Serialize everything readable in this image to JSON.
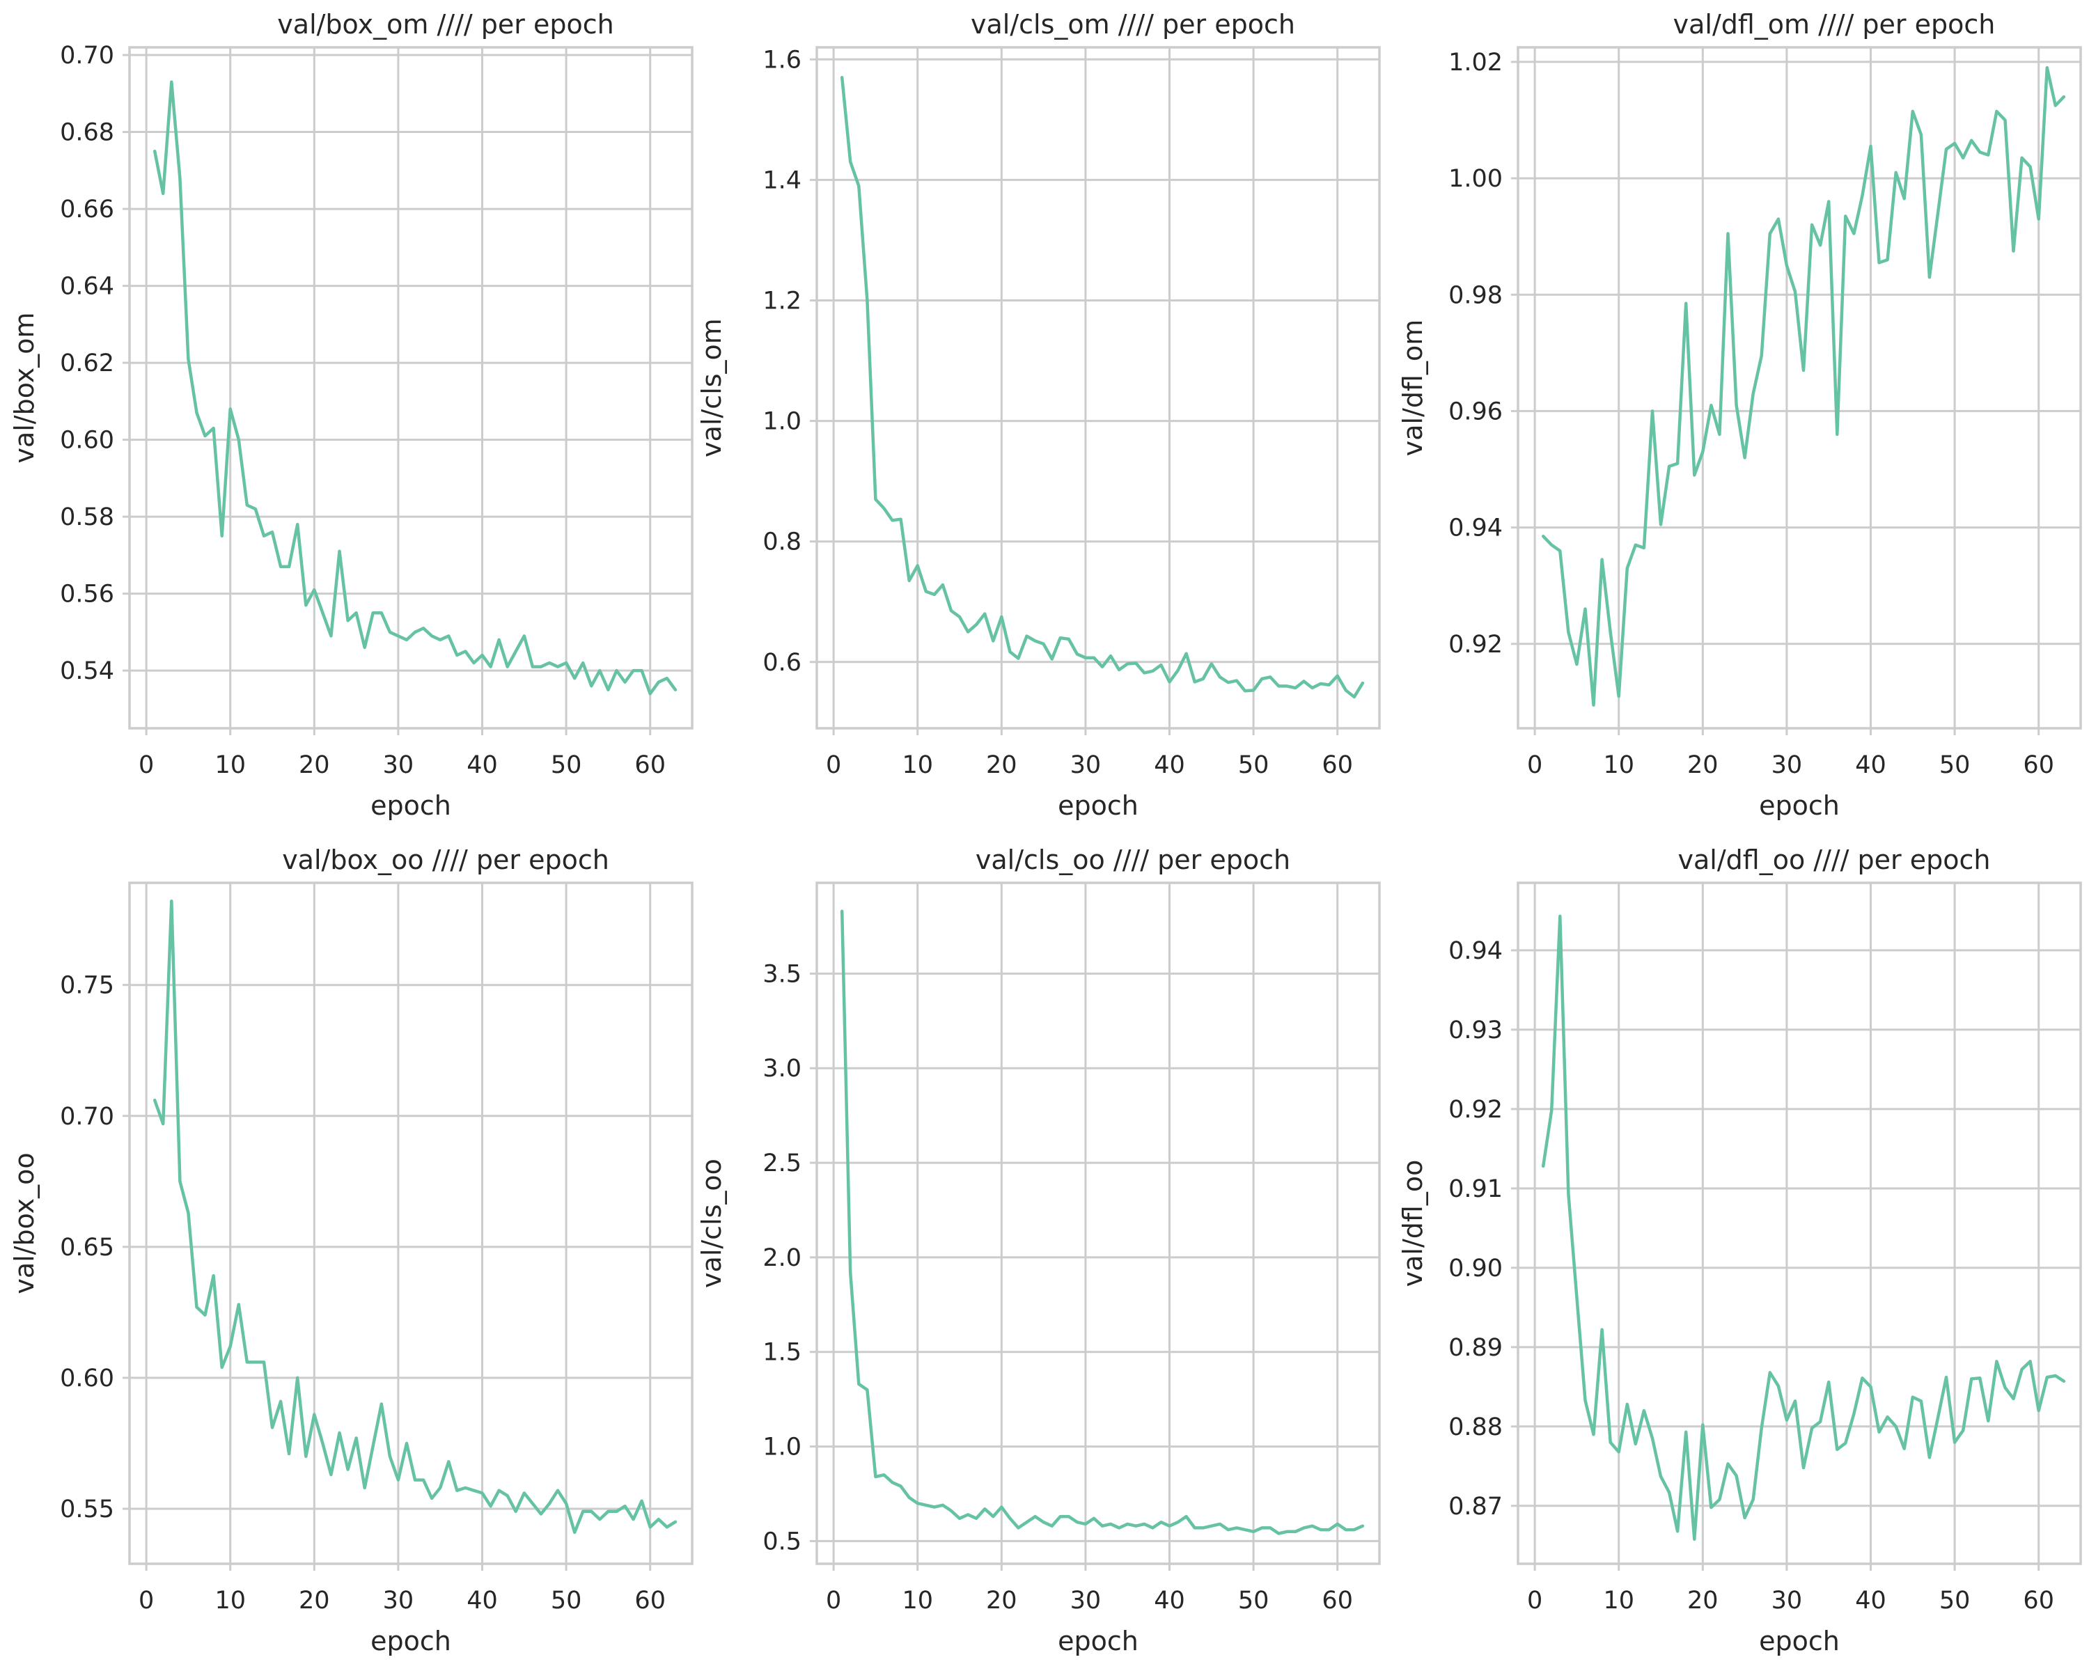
{
  "style": {
    "line_color": "#66c2a5",
    "grid_color": "#cccccc",
    "frame_color": "#cccccc",
    "text_color": "#262626"
  },
  "chart_data": [
    {
      "type": "line",
      "title": "val/box_om //// per epoch",
      "xlabel": "epoch",
      "ylabel": "val/box_om",
      "xlim": [
        -2,
        65
      ],
      "ylim": [
        0.525,
        0.702
      ],
      "xticks": [
        0,
        10,
        20,
        30,
        40,
        50,
        60
      ],
      "xtick_labels": [
        "0",
        "10",
        "20",
        "30",
        "40",
        "50",
        "60"
      ],
      "yticks": [
        0.54,
        0.56,
        0.58,
        0.6,
        0.62,
        0.64,
        0.66,
        0.68,
        0.7
      ],
      "ytick_labels": [
        "0.54",
        "0.56",
        "0.58",
        "0.60",
        "0.62",
        "0.64",
        "0.66",
        "0.68",
        "0.70"
      ],
      "grid": true,
      "series": [
        {
          "x": [
            1,
            2,
            3,
            4,
            5,
            6,
            7,
            8,
            9,
            10,
            11,
            12,
            13,
            14,
            15,
            16,
            17,
            18,
            19,
            20,
            21,
            22,
            23,
            24,
            25,
            26,
            27,
            28,
            29,
            30,
            31,
            32,
            33,
            34,
            35,
            36,
            37,
            38,
            39,
            40,
            41,
            42,
            43,
            44,
            45,
            46,
            47,
            48,
            49,
            50,
            51,
            52,
            53,
            54,
            55,
            56,
            57,
            58,
            59,
            60,
            61,
            62,
            63
          ],
          "y": [
            0.675,
            0.664,
            0.693,
            0.668,
            0.621,
            0.607,
            0.601,
            0.603,
            0.575,
            0.608,
            0.6,
            0.583,
            0.582,
            0.575,
            0.576,
            0.567,
            0.567,
            0.578,
            0.557,
            0.561,
            0.555,
            0.549,
            0.571,
            0.553,
            0.555,
            0.546,
            0.555,
            0.555,
            0.55,
            0.549,
            0.548,
            0.55,
            0.551,
            0.549,
            0.548,
            0.549,
            0.544,
            0.545,
            0.542,
            0.544,
            0.541,
            0.548,
            0.541,
            0.545,
            0.549,
            0.541,
            0.541,
            0.542,
            0.541,
            0.542,
            0.538,
            0.542,
            0.536,
            0.54,
            0.535,
            0.54,
            0.537,
            0.54,
            0.54,
            0.534,
            0.537,
            0.538,
            0.535
          ]
        }
      ]
    },
    {
      "type": "line",
      "title": "val/cls_om //// per epoch",
      "xlabel": "epoch",
      "ylabel": "val/cls_om",
      "xlim": [
        -2,
        65
      ],
      "ylim": [
        0.49,
        1.62
      ],
      "xticks": [
        0,
        10,
        20,
        30,
        40,
        50,
        60
      ],
      "xtick_labels": [
        "0",
        "10",
        "20",
        "30",
        "40",
        "50",
        "60"
      ],
      "yticks": [
        0.6,
        0.8,
        1.0,
        1.2,
        1.4,
        1.6
      ],
      "ytick_labels": [
        "0.6",
        "0.8",
        "1.0",
        "1.2",
        "1.4",
        "1.6"
      ],
      "grid": true,
      "series": [
        {
          "x": [
            1,
            2,
            3,
            4,
            5,
            6,
            7,
            8,
            9,
            10,
            11,
            12,
            13,
            14,
            15,
            16,
            17,
            18,
            19,
            20,
            21,
            22,
            23,
            24,
            25,
            26,
            27,
            28,
            29,
            30,
            31,
            32,
            33,
            34,
            35,
            36,
            37,
            38,
            39,
            40,
            41,
            42,
            43,
            44,
            45,
            46,
            47,
            48,
            49,
            50,
            51,
            52,
            53,
            54,
            55,
            56,
            57,
            58,
            59,
            60,
            61,
            62,
            63
          ],
          "y": [
            1.57,
            1.43,
            1.39,
            1.2,
            0.87,
            0.855,
            0.835,
            0.837,
            0.735,
            0.76,
            0.717,
            0.712,
            0.728,
            0.685,
            0.675,
            0.65,
            0.662,
            0.68,
            0.635,
            0.675,
            0.617,
            0.606,
            0.643,
            0.635,
            0.63,
            0.605,
            0.64,
            0.638,
            0.613,
            0.607,
            0.607,
            0.592,
            0.61,
            0.587,
            0.597,
            0.598,
            0.582,
            0.585,
            0.595,
            0.567,
            0.586,
            0.614,
            0.567,
            0.572,
            0.597,
            0.575,
            0.566,
            0.569,
            0.552,
            0.553,
            0.572,
            0.575,
            0.56,
            0.56,
            0.557,
            0.568,
            0.557,
            0.564,
            0.562,
            0.577,
            0.553,
            0.542,
            0.565
          ]
        }
      ]
    },
    {
      "type": "line",
      "title": "val/dfl_om //// per epoch",
      "xlabel": "epoch",
      "ylabel": "val/dfl_om",
      "xlim": [
        -2,
        65
      ],
      "ylim": [
        0.9055,
        1.0225
      ],
      "xticks": [
        0,
        10,
        20,
        30,
        40,
        50,
        60
      ],
      "xtick_labels": [
        "0",
        "10",
        "20",
        "30",
        "40",
        "50",
        "60"
      ],
      "yticks": [
        0.92,
        0.94,
        0.96,
        0.98,
        1.0,
        1.02
      ],
      "ytick_labels": [
        "0.92",
        "0.94",
        "0.96",
        "0.98",
        "1.00",
        "1.02"
      ],
      "grid": true,
      "series": [
        {
          "x": [
            1,
            2,
            3,
            4,
            5,
            6,
            7,
            8,
            9,
            10,
            11,
            12,
            13,
            14,
            15,
            16,
            17,
            18,
            19,
            20,
            21,
            22,
            23,
            24,
            25,
            26,
            27,
            28,
            29,
            30,
            31,
            32,
            33,
            34,
            35,
            36,
            37,
            38,
            39,
            40,
            41,
            42,
            43,
            44,
            45,
            46,
            47,
            48,
            49,
            50,
            51,
            52,
            53,
            54,
            55,
            56,
            57,
            58,
            59,
            60,
            61,
            62,
            63
          ],
          "y": [
            0.9385,
            0.937,
            0.936,
            0.922,
            0.9165,
            0.926,
            0.9095,
            0.9345,
            0.922,
            0.911,
            0.933,
            0.937,
            0.9365,
            0.96,
            0.9405,
            0.9505,
            0.951,
            0.9785,
            0.949,
            0.953,
            0.961,
            0.956,
            0.9905,
            0.961,
            0.952,
            0.963,
            0.9695,
            0.9905,
            0.993,
            0.985,
            0.9805,
            0.967,
            0.992,
            0.9885,
            0.996,
            0.956,
            0.9935,
            0.9905,
            0.997,
            1.0055,
            0.9855,
            0.986,
            1.001,
            0.9965,
            1.0115,
            1.0075,
            0.983,
            0.994,
            1.005,
            1.006,
            1.0035,
            1.0065,
            1.0045,
            1.004,
            1.0115,
            1.01,
            0.9875,
            1.0035,
            1.002,
            0.993,
            1.019,
            1.0125,
            1.014
          ]
        }
      ]
    },
    {
      "type": "line",
      "title": "val/box_oo //// per epoch",
      "xlabel": "epoch",
      "ylabel": "val/box_oo",
      "xlim": [
        -2,
        65
      ],
      "ylim": [
        0.529,
        0.789
      ],
      "xticks": [
        0,
        10,
        20,
        30,
        40,
        50,
        60
      ],
      "xtick_labels": [
        "0",
        "10",
        "20",
        "30",
        "40",
        "50",
        "60"
      ],
      "yticks": [
        0.55,
        0.6,
        0.65,
        0.7,
        0.75
      ],
      "ytick_labels": [
        "0.55",
        "0.60",
        "0.65",
        "0.70",
        "0.75"
      ],
      "grid": true,
      "series": [
        {
          "x": [
            1,
            2,
            3,
            4,
            5,
            6,
            7,
            8,
            9,
            10,
            11,
            12,
            13,
            14,
            15,
            16,
            17,
            18,
            19,
            20,
            21,
            22,
            23,
            24,
            25,
            26,
            27,
            28,
            29,
            30,
            31,
            32,
            33,
            34,
            35,
            36,
            37,
            38,
            39,
            40,
            41,
            42,
            43,
            44,
            45,
            46,
            47,
            48,
            49,
            50,
            51,
            52,
            53,
            54,
            55,
            56,
            57,
            58,
            59,
            60,
            61,
            62,
            63
          ],
          "y": [
            0.706,
            0.697,
            0.782,
            0.675,
            0.663,
            0.627,
            0.624,
            0.639,
            0.604,
            0.612,
            0.628,
            0.606,
            0.606,
            0.606,
            0.581,
            0.591,
            0.571,
            0.6,
            0.57,
            0.586,
            0.575,
            0.563,
            0.579,
            0.565,
            0.577,
            0.558,
            0.574,
            0.59,
            0.57,
            0.561,
            0.575,
            0.561,
            0.561,
            0.554,
            0.558,
            0.568,
            0.557,
            0.558,
            0.557,
            0.556,
            0.551,
            0.557,
            0.555,
            0.549,
            0.556,
            0.552,
            0.548,
            0.552,
            0.557,
            0.552,
            0.541,
            0.549,
            0.549,
            0.546,
            0.549,
            0.549,
            0.551,
            0.546,
            0.553,
            0.543,
            0.546,
            0.543,
            0.545
          ]
        }
      ]
    },
    {
      "type": "line",
      "title": "val/cls_oo //// per epoch",
      "xlabel": "epoch",
      "ylabel": "val/cls_oo",
      "xlim": [
        -2,
        65
      ],
      "ylim": [
        0.38,
        3.98
      ],
      "xticks": [
        0,
        10,
        20,
        30,
        40,
        50,
        60
      ],
      "xtick_labels": [
        "0",
        "10",
        "20",
        "30",
        "40",
        "50",
        "60"
      ],
      "yticks": [
        0.5,
        1.0,
        1.5,
        2.0,
        2.5,
        3.0,
        3.5
      ],
      "ytick_labels": [
        "0.5",
        "1.0",
        "1.5",
        "2.0",
        "2.5",
        "3.0",
        "3.5"
      ],
      "grid": true,
      "series": [
        {
          "x": [
            1,
            2,
            3,
            4,
            5,
            6,
            7,
            8,
            9,
            10,
            11,
            12,
            13,
            14,
            15,
            16,
            17,
            18,
            19,
            20,
            21,
            22,
            23,
            24,
            25,
            26,
            27,
            28,
            29,
            30,
            31,
            32,
            33,
            34,
            35,
            36,
            37,
            38,
            39,
            40,
            41,
            42,
            43,
            44,
            45,
            46,
            47,
            48,
            49,
            50,
            51,
            52,
            53,
            54,
            55,
            56,
            57,
            58,
            59,
            60,
            61,
            62,
            63
          ],
          "y": [
            3.83,
            1.92,
            1.33,
            1.3,
            0.84,
            0.85,
            0.81,
            0.79,
            0.73,
            0.7,
            0.69,
            0.68,
            0.69,
            0.66,
            0.62,
            0.64,
            0.62,
            0.67,
            0.63,
            0.68,
            0.62,
            0.57,
            0.6,
            0.63,
            0.6,
            0.58,
            0.63,
            0.63,
            0.6,
            0.59,
            0.62,
            0.58,
            0.59,
            0.57,
            0.59,
            0.58,
            0.59,
            0.57,
            0.6,
            0.58,
            0.6,
            0.63,
            0.57,
            0.57,
            0.58,
            0.59,
            0.56,
            0.57,
            0.56,
            0.55,
            0.57,
            0.57,
            0.54,
            0.55,
            0.55,
            0.57,
            0.58,
            0.56,
            0.56,
            0.59,
            0.56,
            0.56,
            0.58
          ]
        }
      ]
    },
    {
      "type": "line",
      "title": "val/dfl_oo //// per epoch",
      "xlabel": "epoch",
      "ylabel": "val/dfl_oo",
      "xlim": [
        -2,
        65
      ],
      "ylim": [
        0.8627,
        0.9485
      ],
      "xticks": [
        0,
        10,
        20,
        30,
        40,
        50,
        60
      ],
      "xtick_labels": [
        "0",
        "10",
        "20",
        "30",
        "40",
        "50",
        "60"
      ],
      "yticks": [
        0.87,
        0.88,
        0.89,
        0.9,
        0.91,
        0.92,
        0.93,
        0.94
      ],
      "ytick_labels": [
        "0.87",
        "0.88",
        "0.89",
        "0.90",
        "0.91",
        "0.92",
        "0.93",
        "0.94"
      ],
      "grid": true,
      "series": [
        {
          "x": [
            1,
            2,
            3,
            4,
            5,
            6,
            7,
            8,
            9,
            10,
            11,
            12,
            13,
            14,
            15,
            16,
            17,
            18,
            19,
            20,
            21,
            22,
            23,
            24,
            25,
            26,
            27,
            28,
            29,
            30,
            31,
            32,
            33,
            34,
            35,
            36,
            37,
            38,
            39,
            40,
            41,
            42,
            43,
            44,
            45,
            46,
            47,
            48,
            49,
            50,
            51,
            52,
            53,
            54,
            55,
            56,
            57,
            58,
            59,
            60,
            61,
            62,
            63
          ],
          "y": [
            0.9128,
            0.9198,
            0.9443,
            0.9093,
            0.8963,
            0.8833,
            0.879,
            0.8922,
            0.878,
            0.8768,
            0.8828,
            0.8778,
            0.882,
            0.8785,
            0.8737,
            0.8717,
            0.8668,
            0.8793,
            0.8658,
            0.8802,
            0.8698,
            0.8708,
            0.8753,
            0.8738,
            0.8685,
            0.8708,
            0.8798,
            0.8868,
            0.8851,
            0.8808,
            0.8832,
            0.8748,
            0.8798,
            0.8806,
            0.8856,
            0.8771,
            0.8779,
            0.8816,
            0.8861,
            0.885,
            0.8793,
            0.8812,
            0.88,
            0.8772,
            0.8837,
            0.8832,
            0.8761,
            0.8811,
            0.8862,
            0.878,
            0.8795,
            0.886,
            0.8861,
            0.8807,
            0.8882,
            0.8849,
            0.8835,
            0.8872,
            0.8882,
            0.882,
            0.8862,
            0.8864,
            0.8857
          ]
        }
      ]
    }
  ]
}
